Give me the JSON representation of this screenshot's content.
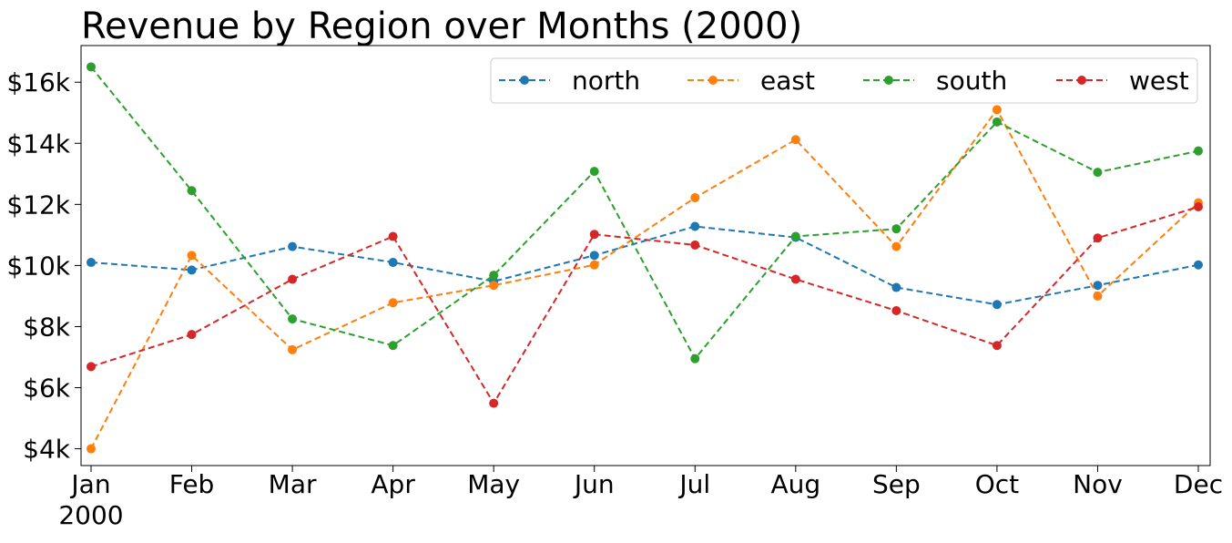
{
  "chart_data": {
    "type": "line",
    "title": "Revenue by Region over Months (2000)",
    "xlabel": "",
    "ylabel": "",
    "categories": [
      "Jan",
      "Feb",
      "Mar",
      "Apr",
      "May",
      "Jun",
      "Jul",
      "Aug",
      "Sep",
      "Oct",
      "Nov",
      "Dec"
    ],
    "x_sublabel": "2000",
    "y_ticks": [
      4000,
      6000,
      8000,
      10000,
      12000,
      14000,
      16000
    ],
    "y_tick_labels": [
      "$4k",
      "$6k",
      "$8k",
      "$10k",
      "$12k",
      "$14k",
      "$16k"
    ],
    "ylim": [
      3450,
      17200
    ],
    "legend_position": "top-right",
    "line_style": "dashed",
    "marker": "circle",
    "grid": false,
    "series": [
      {
        "name": "north",
        "color": "#1f77b4",
        "values": [
          10100,
          9850,
          10620,
          10100,
          9480,
          10330,
          11280,
          10920,
          9280,
          8720,
          9350,
          10020
        ]
      },
      {
        "name": "east",
        "color": "#ff7f0e",
        "values": [
          4000,
          10330,
          7240,
          8780,
          9350,
          10020,
          12220,
          14120,
          10620,
          15100,
          9000,
          12050
        ]
      },
      {
        "name": "south",
        "color": "#2ca02c",
        "values": [
          16500,
          12450,
          8250,
          7380,
          9680,
          13080,
          6950,
          10950,
          11200,
          14700,
          13050,
          13750
        ]
      },
      {
        "name": "west",
        "color": "#d62728",
        "values": [
          6690,
          7740,
          9550,
          10950,
          5490,
          11020,
          10670,
          9550,
          8520,
          7380,
          10900,
          11920
        ]
      }
    ]
  }
}
